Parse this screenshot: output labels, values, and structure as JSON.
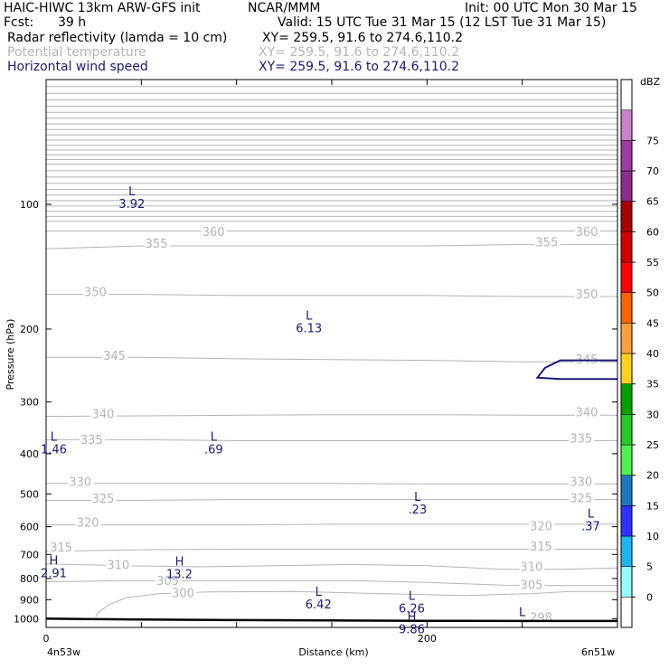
{
  "header": {
    "model": "HAIC-HIWC 13km ARW-GFS init",
    "org": "NCAR/MMM",
    "init": "Init: 00 UTC Mon 30 Mar 15",
    "fcst_label": "Fcst:",
    "fcst_value": "39 h",
    "valid": "Valid: 15 UTC Tue 31 Mar 15 (12 LST Tue 31 Mar 15)",
    "fields": [
      {
        "name": "Radar reflectivity (lamda = 10 cm)",
        "xy": "XY= 259.5, 91.6 to 274.6,110.2",
        "color": "#000000"
      },
      {
        "name": "Potential temperature",
        "xy": "XY= 259.5, 91.6 to 274.6,110.2",
        "color": "#b4b4b4"
      },
      {
        "name": "Horizontal wind speed",
        "xy": "XY= 259.5, 91.6 to 274.6,110.2",
        "color": "#1a1a78"
      }
    ]
  },
  "chart_data": {
    "type": "cross-section contour",
    "xlabel": "Distance (km)",
    "ylabel": "Pressure (hPa)",
    "x_range": [
      0,
      300
    ],
    "x_ticks": [
      {
        "v": 0,
        "label": "0"
      },
      {
        "v": 200,
        "label": "200"
      }
    ],
    "x_minor_step": 50,
    "x_left_label": "4n53w",
    "x_right_label": "6n51w",
    "y_range": [
      50,
      1050
    ],
    "y_log": true,
    "y_ticks": [
      100,
      200,
      300,
      400,
      500,
      600,
      700,
      800,
      900,
      1000
    ],
    "colorbar": {
      "units": "dBZ",
      "levels": [
        0,
        5,
        10,
        15,
        20,
        25,
        30,
        35,
        40,
        45,
        50,
        55,
        60,
        65,
        70,
        75
      ],
      "colors": [
        "#ffffff",
        "#96fafa",
        "#1eb4f0",
        "#3232ff",
        "#1e78be",
        "#50f050",
        "#28c828",
        "#00a000",
        "#fad21e",
        "#faa040",
        "#ff6400",
        "#ff0000",
        "#d20000",
        "#aa0000",
        "#8c2d8c",
        "#a03ca0",
        "#c882c8",
        "#ffffff"
      ]
    },
    "theta_contours": [
      {
        "level": 298,
        "label": "298",
        "points": [
          [
            0,
            1002
          ],
          [
            80,
            1008
          ],
          [
            160,
            1010
          ],
          [
            240,
            1012
          ],
          [
            300,
            1012
          ]
        ]
      },
      {
        "level": 300,
        "label": "300",
        "points": [
          [
            26,
            990
          ],
          [
            27,
            970
          ],
          [
            33,
            925
          ],
          [
            42,
            890
          ],
          [
            60,
            870
          ],
          [
            85,
            862
          ],
          [
            130,
            860
          ],
          [
            175,
            870
          ],
          [
            220,
            880
          ],
          [
            255,
            870
          ],
          [
            275,
            860
          ],
          [
            300,
            860
          ]
        ]
      },
      {
        "level": 305,
        "label": "305",
        "points": [
          [
            0,
            815
          ],
          [
            40,
            810
          ],
          [
            100,
            810
          ],
          [
            160,
            810
          ],
          [
            200,
            818
          ],
          [
            240,
            830
          ],
          [
            270,
            832
          ],
          [
            300,
            832
          ]
        ]
      },
      {
        "level": 310,
        "label": "310",
        "points": [
          [
            0,
            738
          ],
          [
            40,
            745
          ],
          [
            80,
            750
          ],
          [
            120,
            745
          ],
          [
            160,
            740
          ],
          [
            200,
            745
          ],
          [
            240,
            760
          ],
          [
            270,
            760
          ],
          [
            300,
            755
          ]
        ]
      },
      {
        "level": 315,
        "label": "315",
        "points": [
          [
            0,
            688
          ],
          [
            50,
            682
          ],
          [
            100,
            680
          ],
          [
            150,
            680
          ],
          [
            200,
            680
          ],
          [
            250,
            680
          ],
          [
            300,
            680
          ]
        ]
      },
      {
        "level": 320,
        "label": "320",
        "points": [
          [
            0,
            594
          ],
          [
            50,
            594
          ],
          [
            100,
            594
          ],
          [
            150,
            592
          ],
          [
            200,
            592
          ],
          [
            250,
            592
          ],
          [
            300,
            592
          ]
        ]
      },
      {
        "level": 325,
        "label": "325",
        "points": [
          [
            0,
            518
          ],
          [
            50,
            518
          ],
          [
            100,
            516
          ],
          [
            150,
            516
          ],
          [
            200,
            516
          ],
          [
            250,
            516
          ],
          [
            300,
            516
          ]
        ]
      },
      {
        "level": 330,
        "label": "330",
        "points": [
          [
            0,
            472
          ],
          [
            50,
            472
          ],
          [
            100,
            472
          ],
          [
            150,
            472
          ],
          [
            200,
            473
          ],
          [
            250,
            473
          ],
          [
            300,
            473
          ]
        ]
      },
      {
        "level": 335,
        "label": "335",
        "points": [
          [
            0,
            370
          ],
          [
            50,
            370
          ],
          [
            100,
            372
          ],
          [
            150,
            372
          ],
          [
            200,
            372
          ],
          [
            250,
            372
          ],
          [
            300,
            372
          ]
        ]
      },
      {
        "level": 340,
        "label": "340",
        "points": [
          [
            0,
            325
          ],
          [
            50,
            324
          ],
          [
            100,
            323
          ],
          [
            150,
            322
          ],
          [
            200,
            322
          ],
          [
            250,
            323
          ],
          [
            300,
            323
          ]
        ]
      },
      {
        "level": 345,
        "label": "345",
        "points": [
          [
            0,
            234
          ],
          [
            50,
            234
          ],
          [
            100,
            236
          ],
          [
            150,
            237
          ],
          [
            200,
            238
          ],
          [
            250,
            240
          ],
          [
            300,
            240
          ]
        ]
      },
      {
        "level": 350,
        "label": "350",
        "points": [
          [
            0,
            165
          ],
          [
            50,
            165
          ],
          [
            100,
            166
          ],
          [
            150,
            166
          ],
          [
            200,
            166
          ],
          [
            250,
            167
          ],
          [
            300,
            167
          ]
        ]
      },
      {
        "level": 355,
        "label": "355",
        "points": [
          [
            0,
            128
          ],
          [
            50,
            126
          ],
          [
            100,
            126
          ],
          [
            150,
            126
          ],
          [
            200,
            126
          ],
          [
            250,
            125
          ],
          [
            300,
            125
          ]
        ]
      },
      {
        "level": 360,
        "label": "360",
        "points": [
          [
            0,
            116
          ],
          [
            50,
            116
          ],
          [
            100,
            116
          ],
          [
            150,
            116
          ],
          [
            200,
            116
          ],
          [
            250,
            116
          ],
          [
            300,
            116
          ]
        ]
      }
    ],
    "theta_label_positions": [
      {
        "label": "300",
        "x": 66,
        "y": 878
      },
      {
        "label": "305",
        "x": 58,
        "y": 820
      },
      {
        "label": "305",
        "x": 249,
        "y": 840
      },
      {
        "label": "310",
        "x": 32,
        "y": 752
      },
      {
        "label": "310",
        "x": 249,
        "y": 760
      },
      {
        "label": "315",
        "x": 2,
        "y": 682
      },
      {
        "label": "315",
        "x": 254,
        "y": 678
      },
      {
        "label": "320",
        "x": 16,
        "y": 594
      },
      {
        "label": "320",
        "x": 254,
        "y": 606
      },
      {
        "label": "325",
        "x": 24,
        "y": 520
      },
      {
        "label": "325",
        "x": 275,
        "y": 518
      },
      {
        "label": "330",
        "x": 12,
        "y": 473
      },
      {
        "label": "330",
        "x": 275,
        "y": 473
      },
      {
        "label": "335",
        "x": 18,
        "y": 375
      },
      {
        "label": "335",
        "x": 275,
        "y": 372
      },
      {
        "label": "340",
        "x": 24,
        "y": 325
      },
      {
        "label": "340",
        "x": 278,
        "y": 322
      },
      {
        "label": "345",
        "x": 30,
        "y": 235
      },
      {
        "label": "345",
        "x": 278,
        "y": 240
      },
      {
        "label": "350",
        "x": 20,
        "y": 165
      },
      {
        "label": "350",
        "x": 278,
        "y": 167
      },
      {
        "label": "355",
        "x": 52,
        "y": 126
      },
      {
        "label": "355",
        "x": 257,
        "y": 125
      },
      {
        "label": "360",
        "x": 82,
        "y": 118
      },
      {
        "label": "360",
        "x": 278,
        "y": 118
      },
      {
        "label": "298",
        "x": 254,
        "y": 1005
      }
    ],
    "wind_extrema": [
      {
        "type": "L",
        "value": "3.92",
        "x": 45,
        "y": 95,
        "color": "#1a1a78"
      },
      {
        "type": "L",
        "value": "6.13",
        "x": 138,
        "y": 190,
        "color": "#1a1a78"
      },
      {
        "type": "L",
        "value": "1.46",
        "x": 4,
        "y": 372,
        "color": "#1a1a78"
      },
      {
        "type": "L",
        "value": ".69",
        "x": 88,
        "y": 372,
        "color": "#1a1a78"
      },
      {
        "type": "L",
        "value": ".23",
        "x": 195,
        "y": 520,
        "color": "#1a1a78"
      },
      {
        "type": "L",
        "value": ".37",
        "x": 286,
        "y": 570,
        "color": "#1a1a78"
      },
      {
        "type": "H",
        "value": "2.91",
        "x": 4,
        "y": 740,
        "color": "#1a1a78"
      },
      {
        "type": "H",
        "value": "13.2",
        "x": 70,
        "y": 745,
        "color": "#1a1a78"
      },
      {
        "type": "L",
        "value": "6.42",
        "x": 143,
        "y": 880,
        "color": "#1a1a78"
      },
      {
        "type": "L",
        "value": "6.26",
        "x": 192,
        "y": 900,
        "color": "#1a1a78"
      },
      {
        "type": "H",
        "value": "9.86",
        "x": 192,
        "y": 1010,
        "color": "#1a1a78"
      },
      {
        "type": "L",
        "value": "",
        "x": 250,
        "y": 985,
        "color": "#b4b4b4"
      }
    ],
    "wind_contours": [
      {
        "value": "jet contour",
        "color": "#1a1a78",
        "points": [
          [
            300,
            238
          ],
          [
            270,
            238
          ],
          [
            262,
            248
          ],
          [
            258,
            262
          ],
          [
            270,
            264
          ],
          [
            300,
            264
          ]
        ]
      }
    ],
    "terrain": {
      "color": "#000000",
      "points": [
        [
          0,
          1000
        ],
        [
          20,
          1002
        ],
        [
          50,
          1005
        ],
        [
          100,
          1008
        ],
        [
          150,
          1010
        ],
        [
          200,
          1012
        ],
        [
          250,
          1013
        ],
        [
          300,
          1013
        ]
      ]
    }
  }
}
